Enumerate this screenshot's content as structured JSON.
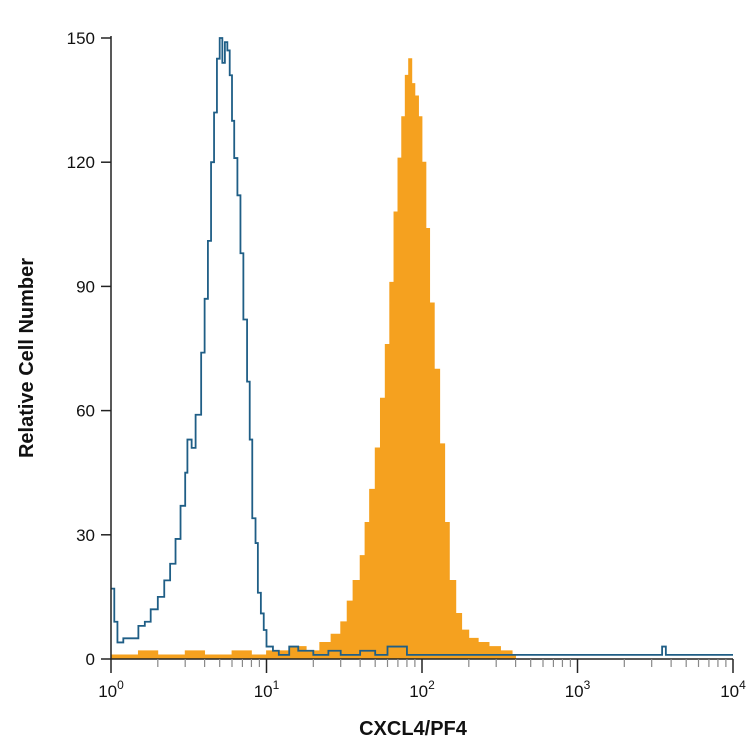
{
  "chart_data": {
    "type": "histogram",
    "xlabel": "CXCL4/PF4",
    "ylabel": "Relative Cell Number",
    "x_scale": "log",
    "xlim": [
      1,
      10000
    ],
    "ylim": [
      0,
      150
    ],
    "x_ticks": [
      {
        "value": 1,
        "base": "10",
        "exp": "0"
      },
      {
        "value": 10,
        "base": "10",
        "exp": "1"
      },
      {
        "value": 100,
        "base": "10",
        "exp": "2"
      },
      {
        "value": 1000,
        "base": "10",
        "exp": "3"
      },
      {
        "value": 10000,
        "base": "10",
        "exp": "4"
      }
    ],
    "y_ticks": [
      "0",
      "30",
      "60",
      "90",
      "120",
      "150"
    ],
    "grid": false,
    "series": [
      {
        "style": "outline",
        "color": "#1f5e86",
        "points": [
          [
            1.0,
            17
          ],
          [
            1.05,
            9
          ],
          [
            1.1,
            4
          ],
          [
            1.2,
            5
          ],
          [
            1.35,
            5
          ],
          [
            1.5,
            8
          ],
          [
            1.65,
            9
          ],
          [
            1.8,
            12
          ],
          [
            2.0,
            15
          ],
          [
            2.2,
            19
          ],
          [
            2.4,
            23
          ],
          [
            2.6,
            29
          ],
          [
            2.8,
            37
          ],
          [
            3.0,
            45
          ],
          [
            3.1,
            53
          ],
          [
            3.3,
            51
          ],
          [
            3.5,
            59
          ],
          [
            3.8,
            74
          ],
          [
            4.0,
            87
          ],
          [
            4.2,
            101
          ],
          [
            4.4,
            120
          ],
          [
            4.6,
            132
          ],
          [
            4.8,
            145
          ],
          [
            5.0,
            150
          ],
          [
            5.2,
            144
          ],
          [
            5.4,
            149
          ],
          [
            5.6,
            147
          ],
          [
            5.8,
            141
          ],
          [
            6.0,
            130
          ],
          [
            6.2,
            121
          ],
          [
            6.5,
            112
          ],
          [
            6.8,
            98
          ],
          [
            7.1,
            82
          ],
          [
            7.5,
            67
          ],
          [
            7.8,
            53
          ],
          [
            8.1,
            34
          ],
          [
            8.5,
            28
          ],
          [
            8.8,
            16
          ],
          [
            9.2,
            11
          ],
          [
            9.6,
            7
          ],
          [
            10.0,
            3
          ],
          [
            11,
            2
          ],
          [
            12,
            1
          ],
          [
            14,
            3
          ],
          [
            16,
            2
          ],
          [
            20,
            1
          ],
          [
            25,
            2
          ],
          [
            30,
            1
          ],
          [
            40,
            2
          ],
          [
            50,
            1
          ],
          [
            60,
            3
          ],
          [
            80,
            1
          ],
          [
            120,
            1
          ],
          [
            200,
            1
          ],
          [
            400,
            1
          ],
          [
            1000,
            1
          ],
          [
            3000,
            1
          ],
          [
            3500,
            3
          ],
          [
            3700,
            1
          ],
          [
            6000,
            1
          ],
          [
            10000,
            1
          ]
        ]
      },
      {
        "style": "filled",
        "color": "#f5a11f",
        "points": [
          [
            1.0,
            1
          ],
          [
            1.5,
            2
          ],
          [
            2.0,
            1
          ],
          [
            3.0,
            2
          ],
          [
            4.0,
            1
          ],
          [
            6.0,
            2
          ],
          [
            8.0,
            1
          ],
          [
            10,
            2
          ],
          [
            14,
            3
          ],
          [
            18,
            2
          ],
          [
            22,
            4
          ],
          [
            26,
            6
          ],
          [
            30,
            9
          ],
          [
            33,
            14
          ],
          [
            36,
            19
          ],
          [
            40,
            25
          ],
          [
            43,
            33
          ],
          [
            46,
            41
          ],
          [
            50,
            51
          ],
          [
            54,
            63
          ],
          [
            58,
            76
          ],
          [
            62,
            91
          ],
          [
            66,
            108
          ],
          [
            70,
            121
          ],
          [
            74,
            131
          ],
          [
            78,
            141
          ],
          [
            82,
            145
          ],
          [
            86,
            139
          ],
          [
            90,
            136
          ],
          [
            95,
            131
          ],
          [
            100,
            120
          ],
          [
            106,
            104
          ],
          [
            112,
            86
          ],
          [
            120,
            70
          ],
          [
            130,
            52
          ],
          [
            140,
            33
          ],
          [
            150,
            19
          ],
          [
            165,
            11
          ],
          [
            180,
            7
          ],
          [
            200,
            5
          ],
          [
            230,
            4
          ],
          [
            270,
            3
          ],
          [
            320,
            2
          ],
          [
            380,
            1
          ],
          [
            400,
            0
          ]
        ]
      }
    ]
  }
}
